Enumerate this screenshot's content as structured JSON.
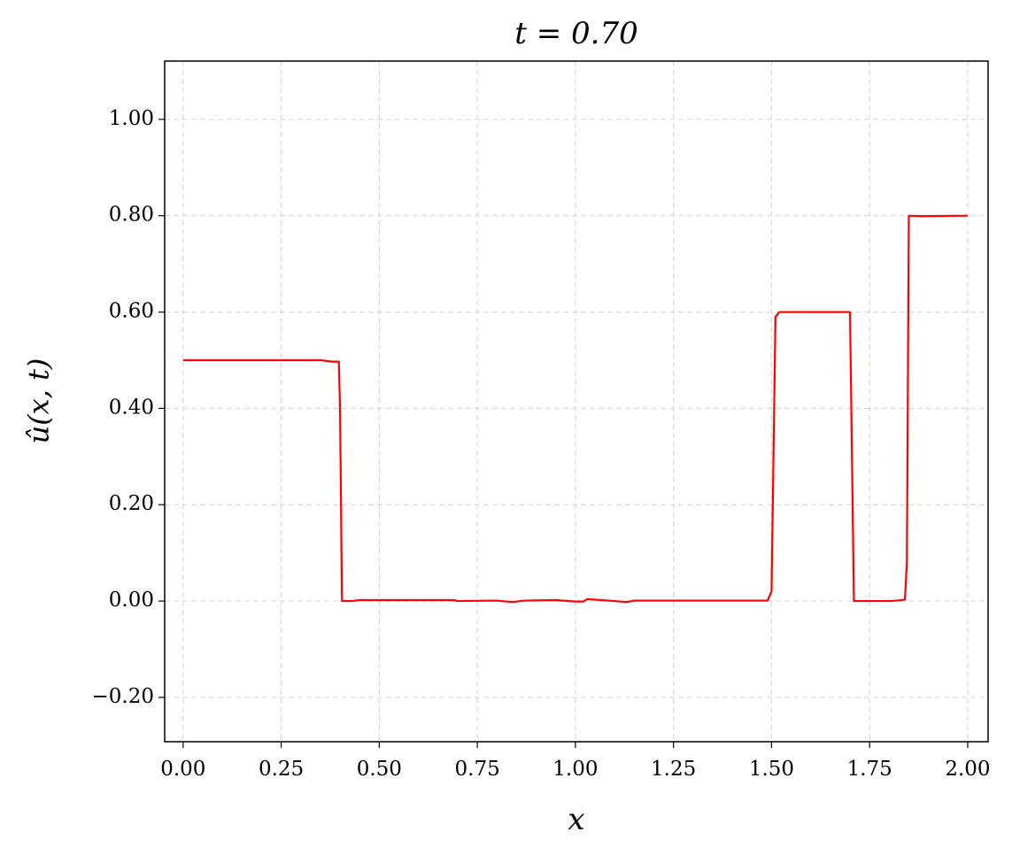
{
  "chart_data": {
    "type": "line",
    "title": "t = 0.70",
    "x_label": "x",
    "y_label": "û(x, t)",
    "x": [
      0,
      0.3,
      0.35,
      0.38,
      0.397,
      0.4,
      0.405,
      0.43,
      0.45,
      0.6,
      0.69,
      0.7,
      0.8,
      0.84,
      0.87,
      0.95,
      1.0,
      1.02,
      1.03,
      1.1,
      1.13,
      1.15,
      1.3,
      1.49,
      1.5,
      1.51,
      1.52,
      1.6,
      1.7,
      1.71,
      1.8,
      1.82,
      1.84,
      1.845,
      1.85,
      1.88,
      2.0
    ],
    "series": [
      {
        "color": "#ff0000",
        "values": [
          0.5,
          0.5,
          0.5,
          0.497,
          0.497,
          0.4,
          0,
          0,
          0.002,
          0.002,
          0.002,
          0,
          0.001,
          -0.002,
          0.001,
          0.002,
          -0.001,
          -0.001,
          0.004,
          0,
          -0.002,
          0.001,
          0.001,
          0.001,
          0.02,
          0.59,
          0.6,
          0.6,
          0.6,
          0,
          0,
          0.001,
          0.003,
          0.08,
          0.8,
          0.799,
          0.8
        ]
      }
    ],
    "xlim": [
      -0.047,
      2.052
    ],
    "ylim": [
      -0.292,
      1.121
    ],
    "xticks": [
      {
        "value": 0,
        "label": "0.00"
      },
      {
        "value": 0.25,
        "label": "0.25"
      },
      {
        "value": 0.5,
        "label": "0.50"
      },
      {
        "value": 0.75,
        "label": "0.75"
      },
      {
        "value": 1,
        "label": "1.00"
      },
      {
        "value": 1.25,
        "label": "1.25"
      },
      {
        "value": 1.5,
        "label": "1.50"
      },
      {
        "value": 1.75,
        "label": "1.75"
      },
      {
        "value": 2,
        "label": "2.00"
      }
    ],
    "yticks": [
      {
        "value": -0.2,
        "label": "−0.20"
      },
      {
        "value": 0,
        "label": "0.00"
      },
      {
        "value": 0.2,
        "label": "0.20"
      },
      {
        "value": 0.4,
        "label": "0.40"
      },
      {
        "value": 0.6,
        "label": "0.60"
      },
      {
        "value": 0.8,
        "label": "0.80"
      },
      {
        "value": 1,
        "label": "1.00"
      }
    ],
    "grid": true
  }
}
